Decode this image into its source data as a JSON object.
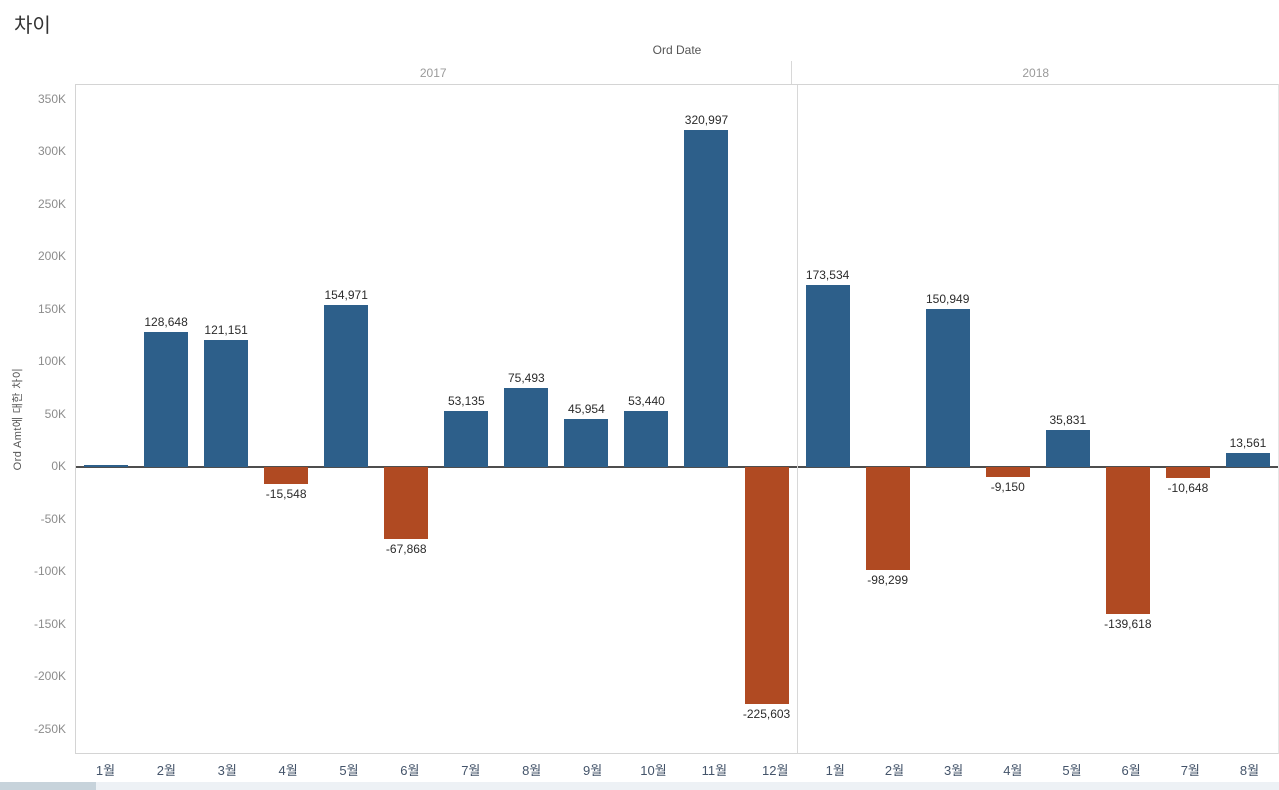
{
  "title": "차이",
  "chart": {
    "column_header": "Ord Date",
    "y_axis_title": "Ord Amt에 대한 차이"
  },
  "colors": {
    "positive_bar": "#2d5f8a",
    "negative_bar": "#b04a22",
    "zero_line": "#4e4e4e"
  },
  "chart_data": {
    "type": "bar",
    "title": "차이",
    "column_field": "Ord Date",
    "xlabel": "",
    "ylabel": "Ord Amt에 대한 차이",
    "ylim": [
      -274000,
      364000
    ],
    "grid": false,
    "y_ticks": [
      {
        "value": 350000,
        "label": "350K"
      },
      {
        "value": 300000,
        "label": "300K"
      },
      {
        "value": 250000,
        "label": "250K"
      },
      {
        "value": 200000,
        "label": "200K"
      },
      {
        "value": 150000,
        "label": "150K"
      },
      {
        "value": 100000,
        "label": "100K"
      },
      {
        "value": 50000,
        "label": "50K"
      },
      {
        "value": 0,
        "label": "0K"
      },
      {
        "value": -50000,
        "label": "-50K"
      },
      {
        "value": -100000,
        "label": "-100K"
      },
      {
        "value": -150000,
        "label": "-150K"
      },
      {
        "value": -200000,
        "label": "-200K"
      },
      {
        "value": -250000,
        "label": "-250K"
      }
    ],
    "groups": [
      {
        "year": "2017",
        "categories": [
          "1월",
          "2월",
          "3월",
          "4월",
          "5월",
          "6월",
          "7월",
          "8월",
          "9월",
          "10월",
          "11월",
          "12월"
        ],
        "values": [
          0,
          128648,
          121151,
          -15548,
          154971,
          -67868,
          53135,
          75493,
          45954,
          53440,
          320997,
          -225603
        ],
        "labels": [
          "",
          "128,648",
          "121,151",
          "-15,548",
          "154,971",
          "-67,868",
          "53,135",
          "75,493",
          "45,954",
          "53,440",
          "320,997",
          "-225,603"
        ]
      },
      {
        "year": "2018",
        "categories": [
          "1월",
          "2월",
          "3월",
          "4월",
          "5월",
          "6월",
          "7월",
          "8월"
        ],
        "values": [
          173534,
          -98299,
          150949,
          -9150,
          35831,
          -139618,
          -10648,
          13561
        ],
        "labels": [
          "173,534",
          "-98,299",
          "150,949",
          "-9,150",
          "35,831",
          "-139,618",
          "-10,648",
          "13,561"
        ]
      }
    ]
  }
}
